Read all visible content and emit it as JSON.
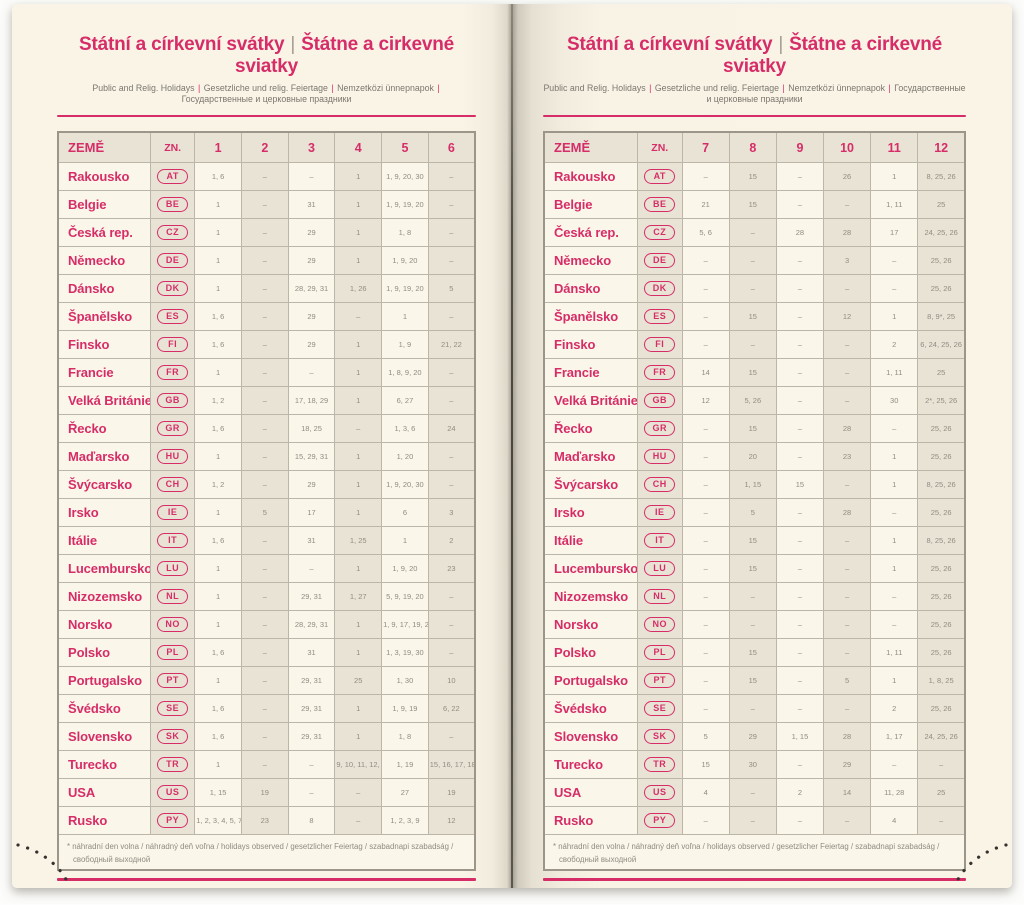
{
  "colors": {
    "accent": "#d62d68",
    "data_text": "#8f8c82",
    "page_cream": "#faf4e7",
    "cell_beige": "#e9e3d5"
  },
  "header": {
    "title_cs": "Státní a církevní svátky",
    "title_sep": "|",
    "title_sk": "Štátne a cirkevné sviatky",
    "subtitle_sep": "|",
    "subtitle_parts": [
      "Public and Relig. Holidays",
      "Gesetzliche und relig. Feiertage",
      "Nemzetközi ünnepnapok",
      "Государственные и церковные праздники"
    ]
  },
  "table": {
    "country_header": "ZEMĚ",
    "code_header": "ZN.",
    "months_left": [
      "1",
      "2",
      "3",
      "4",
      "5",
      "6"
    ],
    "months_right": [
      "7",
      "8",
      "9",
      "10",
      "11",
      "12"
    ],
    "footnote_line1": "* náhradní den volna / náhradný deň voľna / holidays observed / gesetzlicher Feiertag / szabadnapi szabadság /",
    "footnote_line2": "свободный выходной",
    "rows": [
      {
        "country": "Rakousko",
        "code": "AT",
        "m1_6": [
          "1, 6",
          "–",
          "–",
          "1",
          "1, 9, 20, 30",
          "–"
        ],
        "m7_12": [
          "–",
          "15",
          "–",
          "26",
          "1",
          "8, 25, 26"
        ]
      },
      {
        "country": "Belgie",
        "code": "BE",
        "m1_6": [
          "1",
          "–",
          "31",
          "1",
          "1, 9, 19, 20",
          "–"
        ],
        "m7_12": [
          "21",
          "15",
          "–",
          "–",
          "1, 11",
          "25"
        ]
      },
      {
        "country": "Česká rep.",
        "code": "CZ",
        "m1_6": [
          "1",
          "–",
          "29",
          "1",
          "1, 8",
          "–"
        ],
        "m7_12": [
          "5, 6",
          "–",
          "28",
          "28",
          "17",
          "24, 25, 26"
        ]
      },
      {
        "country": "Německo",
        "code": "DE",
        "m1_6": [
          "1",
          "–",
          "29",
          "1",
          "1, 9, 20",
          "–"
        ],
        "m7_12": [
          "–",
          "–",
          "–",
          "3",
          "–",
          "25, 26"
        ]
      },
      {
        "country": "Dánsko",
        "code": "DK",
        "m1_6": [
          "1",
          "–",
          "28, 29, 31",
          "1, 26",
          "1, 9, 19, 20",
          "5"
        ],
        "m7_12": [
          "–",
          "–",
          "–",
          "–",
          "–",
          "25, 26"
        ]
      },
      {
        "country": "Španělsko",
        "code": "ES",
        "m1_6": [
          "1, 6",
          "–",
          "29",
          "–",
          "1",
          "–"
        ],
        "m7_12": [
          "–",
          "15",
          "–",
          "12",
          "1",
          "8, 9*, 25"
        ]
      },
      {
        "country": "Finsko",
        "code": "FI",
        "m1_6": [
          "1, 6",
          "–",
          "29",
          "1",
          "1, 9",
          "21, 22"
        ],
        "m7_12": [
          "–",
          "–",
          "–",
          "–",
          "2",
          "6, 24, 25, 26"
        ]
      },
      {
        "country": "Francie",
        "code": "FR",
        "m1_6": [
          "1",
          "–",
          "–",
          "1",
          "1, 8, 9, 20",
          "–"
        ],
        "m7_12": [
          "14",
          "15",
          "–",
          "–",
          "1, 11",
          "25"
        ]
      },
      {
        "country": "Velká Británie",
        "code": "GB",
        "m1_6": [
          "1, 2",
          "–",
          "17, 18, 29",
          "1",
          "6, 27",
          "–"
        ],
        "m7_12": [
          "12",
          "5, 26",
          "–",
          "–",
          "30",
          "2*, 25, 26"
        ]
      },
      {
        "country": "Řecko",
        "code": "GR",
        "m1_6": [
          "1, 6",
          "–",
          "18, 25",
          "–",
          "1, 3, 6",
          "24"
        ],
        "m7_12": [
          "–",
          "15",
          "–",
          "28",
          "–",
          "25, 26"
        ]
      },
      {
        "country": "Maďarsko",
        "code": "HU",
        "m1_6": [
          "1",
          "–",
          "15, 29, 31",
          "1",
          "1, 20",
          "–"
        ],
        "m7_12": [
          "–",
          "20",
          "–",
          "23",
          "1",
          "25, 26"
        ]
      },
      {
        "country": "Švýcarsko",
        "code": "CH",
        "m1_6": [
          "1, 2",
          "–",
          "29",
          "1",
          "1, 9, 20, 30",
          "–"
        ],
        "m7_12": [
          "–",
          "1, 15",
          "15",
          "–",
          "1",
          "8, 25, 26"
        ]
      },
      {
        "country": "Irsko",
        "code": "IE",
        "m1_6": [
          "1",
          "5",
          "17",
          "1",
          "6",
          "3"
        ],
        "m7_12": [
          "–",
          "5",
          "–",
          "28",
          "–",
          "25, 26"
        ]
      },
      {
        "country": "Itálie",
        "code": "IT",
        "m1_6": [
          "1, 6",
          "–",
          "31",
          "1, 25",
          "1",
          "2"
        ],
        "m7_12": [
          "–",
          "15",
          "–",
          "–",
          "1",
          "8, 25, 26"
        ]
      },
      {
        "country": "Lucembursko",
        "code": "LU",
        "m1_6": [
          "1",
          "–",
          "–",
          "1",
          "1, 9, 20",
          "23"
        ],
        "m7_12": [
          "–",
          "15",
          "–",
          "–",
          "1",
          "25, 26"
        ]
      },
      {
        "country": "Nizozemsko",
        "code": "NL",
        "m1_6": [
          "1",
          "–",
          "29, 31",
          "1, 27",
          "5, 9, 19, 20",
          "–"
        ],
        "m7_12": [
          "–",
          "–",
          "–",
          "–",
          "–",
          "25, 26"
        ]
      },
      {
        "country": "Norsko",
        "code": "NO",
        "m1_6": [
          "1",
          "–",
          "28, 29, 31",
          "1",
          "1, 9, 17, 19, 20",
          "–"
        ],
        "m7_12": [
          "–",
          "–",
          "–",
          "–",
          "–",
          "25, 26"
        ]
      },
      {
        "country": "Polsko",
        "code": "PL",
        "m1_6": [
          "1, 6",
          "–",
          "31",
          "1",
          "1, 3, 19, 30",
          "–"
        ],
        "m7_12": [
          "–",
          "15",
          "–",
          "–",
          "1, 11",
          "25, 26"
        ]
      },
      {
        "country": "Portugalsko",
        "code": "PT",
        "m1_6": [
          "1",
          "–",
          "29, 31",
          "25",
          "1, 30",
          "10"
        ],
        "m7_12": [
          "–",
          "15",
          "–",
          "5",
          "1",
          "1, 8, 25"
        ]
      },
      {
        "country": "Švédsko",
        "code": "SE",
        "m1_6": [
          "1, 6",
          "–",
          "29, 31",
          "1",
          "1, 9, 19",
          "6, 22"
        ],
        "m7_12": [
          "–",
          "–",
          "–",
          "–",
          "2",
          "25, 26"
        ]
      },
      {
        "country": "Slovensko",
        "code": "SK",
        "m1_6": [
          "1, 6",
          "–",
          "29, 31",
          "1",
          "1, 8",
          "–"
        ],
        "m7_12": [
          "5",
          "29",
          "1, 15",
          "28",
          "1, 17",
          "24, 25, 26"
        ]
      },
      {
        "country": "Turecko",
        "code": "TR",
        "m1_6": [
          "1",
          "–",
          "–",
          "9, 10, 11, 12, 23",
          "1, 19",
          "15, 16, 17, 18, 19"
        ],
        "m7_12": [
          "15",
          "30",
          "–",
          "29",
          "–",
          "–"
        ]
      },
      {
        "country": "USA",
        "code": "US",
        "m1_6": [
          "1, 15",
          "19",
          "–",
          "–",
          "27",
          "19"
        ],
        "m7_12": [
          "4",
          "–",
          "2",
          "14",
          "11, 28",
          "25"
        ]
      },
      {
        "country": "Rusko",
        "code": "PY",
        "m1_6": [
          "1, 2, 3, 4, 5, 7, 8",
          "23",
          "8",
          "–",
          "1, 2, 3, 9",
          "12"
        ],
        "m7_12": [
          "–",
          "–",
          "–",
          "–",
          "4",
          "–"
        ]
      }
    ]
  }
}
